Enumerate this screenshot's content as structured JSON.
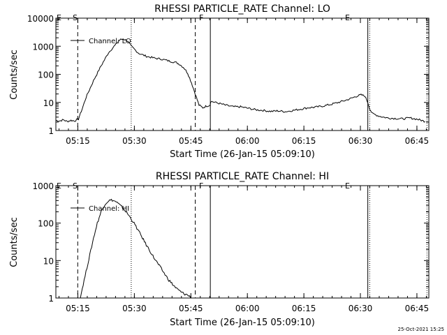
{
  "chart_data": [
    {
      "type": "line",
      "title": "RHESSI PARTICLE_RATE Channel: LO",
      "xlabel": "Start Time (26-Jan-15 05:09:10)",
      "ylabel": "Counts/sec",
      "yscale": "log",
      "ylim": [
        1,
        10000
      ],
      "xlim_minutes_after_05_09_10": [
        0,
        99
      ],
      "x_tick_labels": [
        "05:15",
        "05:30",
        "05:45",
        "06:00",
        "06:15",
        "06:30",
        "06:45"
      ],
      "y_tick_labels": [
        "1",
        "10",
        "100",
        "1000",
        "10000"
      ],
      "legend": [
        "Channel: LO"
      ],
      "flags": [
        "E",
        "S",
        "F",
        "E"
      ],
      "markers": [
        {
          "t": 5.8,
          "style": "dashed"
        },
        {
          "t": 20.0,
          "style": "dotted"
        },
        {
          "t": 37.0,
          "style": "dashed"
        },
        {
          "t": 41.0,
          "style": "solid"
        },
        {
          "t": 82.8,
          "style": "solid"
        },
        {
          "t": 83.3,
          "style": "dotted"
        },
        {
          "t": 98.5,
          "style": "dotted"
        }
      ],
      "series": [
        {
          "name": "Channel: LO",
          "t": [
            0,
            1,
            2,
            3,
            4,
            5,
            5.5,
            6,
            7,
            8,
            10,
            12,
            14,
            16,
            17,
            18,
            19,
            20,
            22,
            24,
            26,
            28,
            30,
            32,
            33,
            34,
            35,
            36,
            37,
            38,
            39,
            40,
            40.9,
            41.1,
            43,
            45,
            47,
            49,
            51,
            53,
            55,
            57,
            59,
            61,
            63,
            65,
            67,
            69,
            71,
            73,
            75,
            77,
            79,
            80,
            81,
            82,
            82.8,
            83.3,
            84,
            86,
            88,
            90,
            92,
            94,
            96,
            97,
            98
          ],
          "values": [
            2.3,
            2.2,
            2.4,
            2.1,
            2.3,
            2.2,
            2.4,
            2.6,
            6,
            15,
            60,
            200,
            600,
            1200,
            1700,
            1800,
            1550,
            1000,
            560,
            440,
            380,
            350,
            300,
            260,
            220,
            170,
            110,
            50,
            20,
            8,
            6.5,
            7.5,
            8,
            11,
            9.5,
            8,
            7,
            7,
            6.2,
            5.5,
            5.2,
            4.8,
            5,
            4.7,
            5.2,
            5.8,
            6.5,
            6.8,
            7.5,
            8.5,
            10,
            12,
            15,
            17,
            18.5,
            17,
            10,
            6,
            4,
            3.2,
            2.8,
            2.7,
            2.6,
            2.8,
            2.5,
            2.3,
            2.1
          ]
        }
      ]
    },
    {
      "type": "line",
      "title": "RHESSI PARTICLE_RATE Channel: HI",
      "xlabel": "Start Time (26-Jan-15 05:09:10)",
      "ylabel": "Counts/sec",
      "yscale": "log",
      "ylim": [
        1,
        1000
      ],
      "xlim_minutes_after_05_09_10": [
        0,
        99
      ],
      "x_tick_labels": [
        "05:15",
        "05:30",
        "05:45",
        "06:00",
        "06:15",
        "06:30",
        "06:45"
      ],
      "y_tick_labels": [
        "1",
        "10",
        "100",
        "1000"
      ],
      "legend": [
        "Channel: HI"
      ],
      "flags": [
        "E",
        "S",
        "F",
        "E"
      ],
      "markers": [
        {
          "t": 5.8,
          "style": "dashed"
        },
        {
          "t": 20.0,
          "style": "dotted"
        },
        {
          "t": 37.0,
          "style": "dashed"
        },
        {
          "t": 41.0,
          "style": "solid"
        },
        {
          "t": 82.8,
          "style": "solid"
        },
        {
          "t": 83.3,
          "style": "dotted"
        },
        {
          "t": 98.5,
          "style": "dotted"
        }
      ],
      "series": [
        {
          "name": "Channel: HI",
          "t": [
            6.5,
            7,
            8,
            9,
            10,
            11,
            12,
            13,
            14,
            15,
            16,
            17,
            18,
            19,
            20,
            21,
            22,
            23,
            24,
            25,
            26,
            27,
            28,
            29,
            30,
            31,
            32,
            33,
            34,
            35,
            36
          ],
          "values": [
            1.0,
            1.8,
            5,
            14,
            40,
            100,
            200,
            320,
            400,
            410,
            370,
            300,
            240,
            180,
            130,
            90,
            60,
            40,
            26,
            18,
            12,
            8.5,
            6,
            4.2,
            3,
            2.3,
            1.8,
            1.5,
            1.3,
            1.2,
            1.0
          ]
        }
      ]
    }
  ],
  "footer": {
    "timestamp": "25-Oct-2021 15:25"
  }
}
